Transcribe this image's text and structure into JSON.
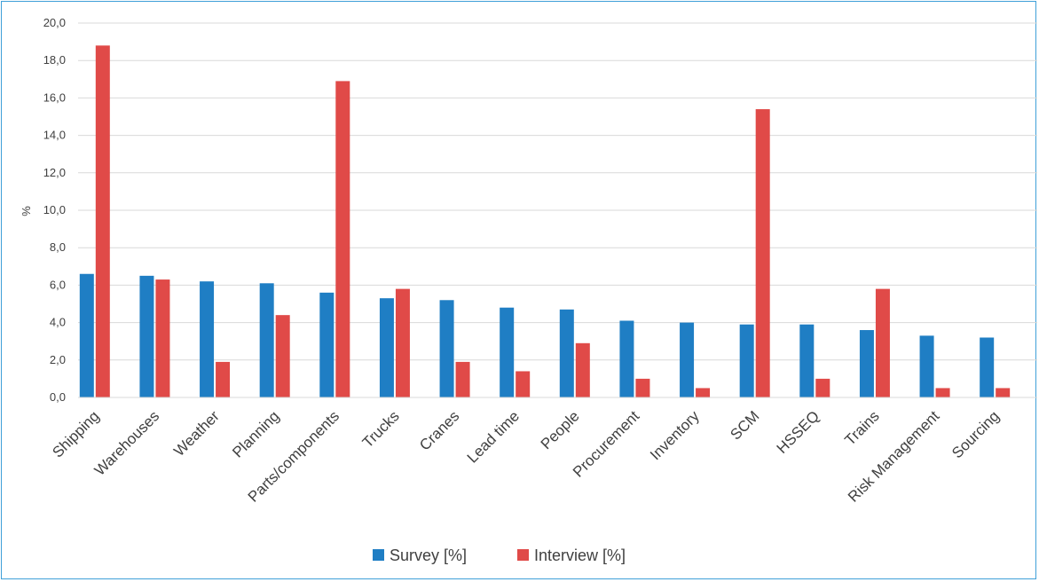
{
  "chart_data": {
    "type": "bar",
    "title": "",
    "xlabel": "",
    "ylabel": "%",
    "ylim": [
      0,
      20
    ],
    "yticks": [
      "0,0",
      "2,0",
      "4,0",
      "6,0",
      "8,0",
      "10,0",
      "12,0",
      "14,0",
      "16,0",
      "18,0",
      "20,0"
    ],
    "grid": true,
    "legend_position": "bottom",
    "categories": [
      "Shipping",
      "Warehouses",
      "Weather",
      "Planning",
      "Parts/components",
      "Trucks",
      "Cranes",
      "Lead time",
      "People",
      "Procurement",
      "Inventory",
      "SCM",
      "HSSEQ",
      "Trains",
      "Risk Management",
      "Sourcing"
    ],
    "series": [
      {
        "name": "Survey [%]",
        "color": "#1f7ec4",
        "values": [
          6.6,
          6.5,
          6.2,
          6.1,
          5.6,
          5.3,
          5.2,
          4.8,
          4.7,
          4.1,
          4.0,
          3.9,
          3.9,
          3.6,
          3.3,
          3.2
        ]
      },
      {
        "name": "Interview [%]",
        "color": "#e04a48",
        "values": [
          18.8,
          6.3,
          1.9,
          4.4,
          16.9,
          5.8,
          1.9,
          1.4,
          2.9,
          1.0,
          0.5,
          15.4,
          1.0,
          5.8,
          0.5,
          0.5
        ]
      }
    ]
  }
}
